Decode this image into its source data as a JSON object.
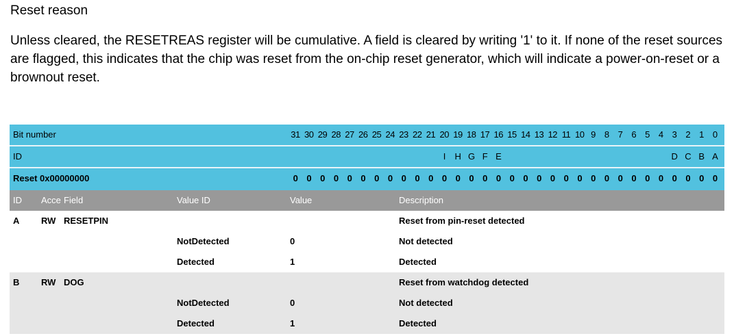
{
  "heading": "Reset reason",
  "paragraph": "Unless cleared, the RESETREAS register will be cumulative. A field is cleared by writing '1' to it. If none of the reset sources are flagged, this indicates that the chip was reset from the on-chip reset generator, which will indicate a power-on-reset or a brownout reset.",
  "register": {
    "bit_number_label": "Bit number",
    "id_label": "ID",
    "reset_label": "Reset 0x00000000",
    "bits": [
      "31",
      "30",
      "29",
      "28",
      "27",
      "26",
      "25",
      "24",
      "23",
      "22",
      "21",
      "20",
      "19",
      "18",
      "17",
      "16",
      "15",
      "14",
      "13",
      "12",
      "11",
      "10",
      "9",
      "8",
      "7",
      "6",
      "5",
      "4",
      "3",
      "2",
      "1",
      "0"
    ],
    "ids": [
      "",
      "",
      "",
      "",
      "",
      "",
      "",
      "",
      "",
      "",
      "",
      "I",
      "H",
      "G",
      "F",
      "E",
      "",
      "",
      "",
      "",
      "",
      "",
      "",
      "",
      "",
      "",
      "",
      "",
      "D",
      "C",
      "B",
      "A"
    ],
    "reset_values": [
      "0",
      "0",
      "0",
      "0",
      "0",
      "0",
      "0",
      "0",
      "0",
      "0",
      "0",
      "0",
      "0",
      "0",
      "0",
      "0",
      "0",
      "0",
      "0",
      "0",
      "0",
      "0",
      "0",
      "0",
      "0",
      "0",
      "0",
      "0",
      "0",
      "0",
      "0",
      "0"
    ]
  },
  "columns": {
    "id": "ID",
    "access": "Acce",
    "field": "Field",
    "value_id": "Value ID",
    "value": "Value",
    "description": "Description"
  },
  "fields": [
    {
      "id": "A",
      "access": "RW",
      "field": "RESETPIN",
      "description": "Reset from pin-reset detected",
      "values": [
        {
          "value_id": "NotDetected",
          "value": "0",
          "description": "Not detected"
        },
        {
          "value_id": "Detected",
          "value": "1",
          "description": "Detected"
        }
      ]
    },
    {
      "id": "B",
      "access": "RW",
      "field": "DOG",
      "description": "Reset from watchdog detected",
      "values": [
        {
          "value_id": "NotDetected",
          "value": "0",
          "description": "Not detected"
        },
        {
          "value_id": "Detected",
          "value": "1",
          "description": "Detected"
        }
      ]
    }
  ]
}
